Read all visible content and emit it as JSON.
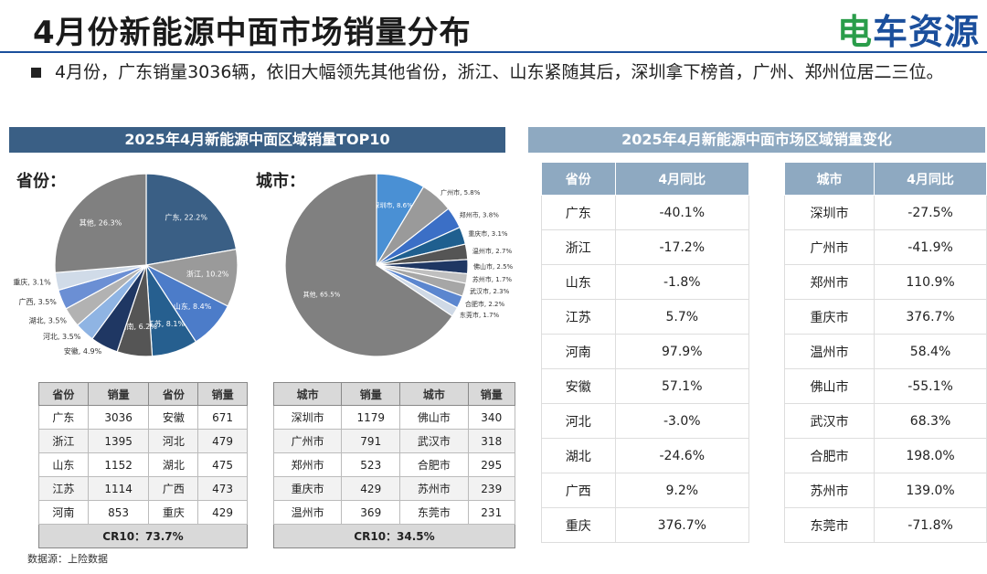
{
  "header": {
    "title": "4月份新能源中面市场销量分布",
    "logo_main": "车资源",
    "logo_prefix": "电",
    "summary": "4月份，广东销量3036辆，依旧大幅领先其他省份，浙江、山东紧随其后，深圳拿下榜首，广州、郑州位居二三位。"
  },
  "left_banner": "2025年4月新能源中面区域销量TOP10",
  "right_banner": "2025年4月新能源中面市场区域销量变化",
  "province_label": "省份：",
  "city_label": "城市：",
  "chart_data": [
    {
      "type": "pie",
      "slices": [
        {
          "label": "广东",
          "value": 22.2,
          "text": "广东, 22.2%",
          "color": "#3a5f85"
        },
        {
          "label": "浙江",
          "value": 10.2,
          "text": "浙江, 10.2%",
          "color": "#9a9a9a"
        },
        {
          "label": "山东",
          "value": 8.4,
          "text": "山东, 8.4%",
          "color": "#4c7cc9"
        },
        {
          "label": "江苏",
          "value": 8.1,
          "text": "江苏, 8.1%",
          "color": "#265f8f"
        },
        {
          "label": "河南",
          "value": 6.2,
          "text": "河南, 6.2%",
          "color": "#555555"
        },
        {
          "label": "安徽",
          "value": 4.9,
          "text": "安徽, 4.9%",
          "color": "#1f3763"
        },
        {
          "label": "河北",
          "value": 3.5,
          "text": "河北, 3.5%",
          "color": "#8fb4e3"
        },
        {
          "label": "湖北",
          "value": 3.5,
          "text": "湖北, 3.5%",
          "color": "#b2b2b2"
        },
        {
          "label": "广西",
          "value": 3.5,
          "text": "广西, 3.5%",
          "color": "#6b8fd4"
        },
        {
          "label": "重庆",
          "value": 3.1,
          "text": "重庆, 3.1%",
          "color": "#d0dbe8"
        },
        {
          "label": "其他",
          "value": 26.3,
          "text": "其他, 26.3%",
          "color": "#808080"
        }
      ]
    },
    {
      "type": "pie",
      "slices": [
        {
          "label": "深圳市",
          "value": 8.6,
          "text": "深圳市, 8.6%",
          "color": "#4a90d4"
        },
        {
          "label": "广州市",
          "value": 5.8,
          "text": "广州市, 5.8%",
          "color": "#9a9a9a"
        },
        {
          "label": "郑州市",
          "value": 3.8,
          "text": "郑州市, 3.8%",
          "color": "#3b6fc6"
        },
        {
          "label": "重庆市",
          "value": 3.1,
          "text": "重庆市, 3.1%",
          "color": "#1f5f8f"
        },
        {
          "label": "温州市",
          "value": 2.7,
          "text": "温州市, 2.7%",
          "color": "#555555"
        },
        {
          "label": "佛山市",
          "value": 2.5,
          "text": "佛山市, 2.5%",
          "color": "#1f3763"
        },
        {
          "label": "苏州市",
          "value": 1.7,
          "text": "苏州市, 1.7%",
          "color": "#bfbfbf"
        },
        {
          "label": "武汉市",
          "value": 2.3,
          "text": "武汉市, 2.3%",
          "color": "#a6a6a6"
        },
        {
          "label": "合肥市",
          "value": 2.2,
          "text": "合肥市, 2.2%",
          "color": "#5b86cf"
        },
        {
          "label": "东莞市",
          "value": 1.7,
          "text": "东莞市, 1.7%",
          "color": "#cfd9e6"
        },
        {
          "label": "其他",
          "value": 65.5,
          "text": "其他, 65.5%",
          "color": "#808080"
        }
      ]
    }
  ],
  "province_table": {
    "headers": [
      "省份",
      "销量",
      "省份",
      "销量"
    ],
    "rows": [
      [
        "广东",
        "3036",
        "安徽",
        "671"
      ],
      [
        "浙江",
        "1395",
        "河北",
        "479"
      ],
      [
        "山东",
        "1152",
        "湖北",
        "475"
      ],
      [
        "江苏",
        "1114",
        "广西",
        "473"
      ],
      [
        "河南",
        "853",
        "重庆",
        "429"
      ]
    ],
    "cr": "CR10：73.7%"
  },
  "city_table": {
    "headers": [
      "城市",
      "销量",
      "城市",
      "销量"
    ],
    "rows": [
      [
        "深圳市",
        "1179",
        "佛山市",
        "340"
      ],
      [
        "广州市",
        "791",
        "武汉市",
        "318"
      ],
      [
        "郑州市",
        "523",
        "合肥市",
        "295"
      ],
      [
        "重庆市",
        "429",
        "苏州市",
        "239"
      ],
      [
        "温州市",
        "369",
        "东莞市",
        "231"
      ]
    ],
    "cr": "CR10：34.5%"
  },
  "province_change": {
    "headers": [
      "省份",
      "4月同比"
    ],
    "rows": [
      [
        "广东",
        "-40.1%"
      ],
      [
        "浙江",
        "-17.2%"
      ],
      [
        "山东",
        "-1.8%"
      ],
      [
        "江苏",
        "5.7%"
      ],
      [
        "河南",
        "97.9%"
      ],
      [
        "安徽",
        "57.1%"
      ],
      [
        "河北",
        "-3.0%"
      ],
      [
        "湖北",
        "-24.6%"
      ],
      [
        "广西",
        "9.2%"
      ],
      [
        "重庆",
        "376.7%"
      ]
    ]
  },
  "city_change": {
    "headers": [
      "城市",
      "4月同比"
    ],
    "rows": [
      [
        "深圳市",
        "-27.5%"
      ],
      [
        "广州市",
        "-41.9%"
      ],
      [
        "郑州市",
        "110.9%"
      ],
      [
        "重庆市",
        "376.7%"
      ],
      [
        "温州市",
        "58.4%"
      ],
      [
        "佛山市",
        "-55.1%"
      ],
      [
        "武汉市",
        "68.3%"
      ],
      [
        "合肥市",
        "198.0%"
      ],
      [
        "苏州市",
        "139.0%"
      ],
      [
        "东莞市",
        "-71.8%"
      ]
    ]
  },
  "source": "数据源：上险数据"
}
